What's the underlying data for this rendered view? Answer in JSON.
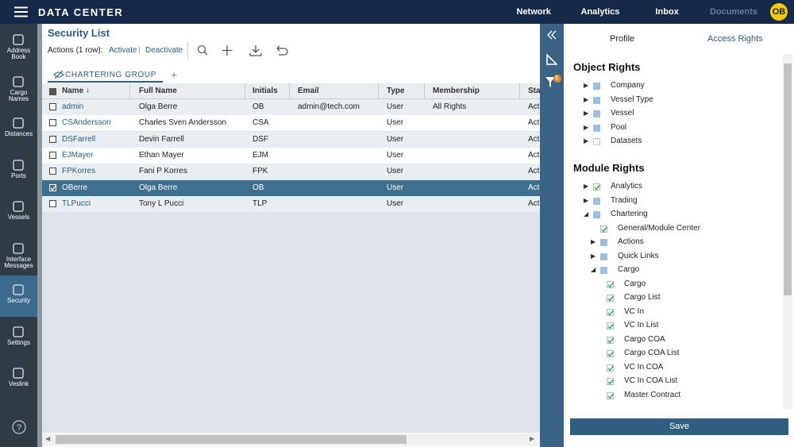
{
  "header": {
    "title": "DATA CENTER",
    "nav": [
      "Network",
      "Analytics",
      "Inbox",
      "Documents"
    ],
    "disabled_nav": "Documents",
    "avatar": "OB"
  },
  "sidebar": {
    "items": [
      "Address Book",
      "Cargo Names",
      "Distances",
      "Ports",
      "Vessels",
      "Interface Messages",
      "Security",
      "Settings",
      "Veslink"
    ],
    "active": "Security"
  },
  "main": {
    "title": "Security List",
    "actions_label": "Actions (1 row):",
    "actions": [
      "Activate",
      "Deactivate"
    ],
    "tab": "CHARTERING GROUP",
    "table": {
      "columns": [
        "Name",
        "Full Name",
        "Initials",
        "Email",
        "Type",
        "Membership",
        "Status"
      ],
      "rows": [
        [
          "admin",
          "Olga Berre",
          "OB",
          "admin@tech.com",
          "User",
          "All Rights",
          "Active"
        ],
        [
          "CSAndersson",
          "Charles Sven Andersson",
          "CSA",
          "",
          "User",
          "",
          "Active"
        ],
        [
          "DSFarrell",
          "Devin Farrell",
          "DSF",
          "",
          "User",
          "",
          "Active"
        ],
        [
          "EJMayer",
          "Ethan Mayer",
          "EJM",
          "",
          "User",
          "",
          "Active"
        ],
        [
          "FPKorres",
          "Fani P Korres",
          "FPK",
          "",
          "User",
          "",
          "Active"
        ],
        [
          "OBerre",
          "Olga Berre",
          "OB",
          "",
          "User",
          "",
          "Active"
        ],
        [
          "TLPucci",
          "Tony L Pucci",
          "TLP",
          "",
          "User",
          "",
          "Active"
        ]
      ],
      "selected_row": 5
    }
  },
  "rights": {
    "tabs": [
      "Profile",
      "Access Rights"
    ],
    "filter_badge": "1",
    "object_rights": {
      "title": "Object Rights",
      "items": [
        {
          "label": "Company",
          "level": 0,
          "expand": "closed",
          "state": "partial"
        },
        {
          "label": "Vessel Type",
          "level": 0,
          "expand": "closed",
          "state": "partial"
        },
        {
          "label": "Vessel",
          "level": 0,
          "expand": "closed",
          "state": "partial"
        },
        {
          "label": "Pool",
          "level": 0,
          "expand": "closed",
          "state": "partial"
        },
        {
          "label": "Datasets",
          "level": 0,
          "expand": "closed",
          "state": "empty"
        }
      ]
    },
    "module_rights": {
      "title": "Module Rights",
      "items": [
        {
          "label": "Analytics",
          "level": 0,
          "expand": "closed",
          "state": "checked"
        },
        {
          "label": "Trading",
          "level": 0,
          "expand": "closed",
          "state": "partial"
        },
        {
          "label": "Chartering",
          "level": 0,
          "expand": "open",
          "state": "partial"
        },
        {
          "label": "General/Module Center",
          "level": 1,
          "state": "checked"
        },
        {
          "label": "Actions",
          "level": 1,
          "expand": "closed",
          "state": "partial"
        },
        {
          "label": "Quick Links",
          "level": 1,
          "expand": "closed",
          "state": "partial"
        },
        {
          "label": "Cargo",
          "level": 1,
          "expand": "open",
          "state": "partial"
        },
        {
          "label": "Cargo",
          "level": 2,
          "state": "checked"
        },
        {
          "label": "Cargo List",
          "level": 2,
          "state": "checked"
        },
        {
          "label": "VC In",
          "level": 2,
          "state": "checked"
        },
        {
          "label": "VC In List",
          "level": 2,
          "state": "checked"
        },
        {
          "label": "Cargo COA",
          "level": 2,
          "state": "checked"
        },
        {
          "label": "Cargo COA List",
          "level": 2,
          "state": "checked"
        },
        {
          "label": "VC In COA",
          "level": 2,
          "state": "checked"
        },
        {
          "label": "VC In COA List",
          "level": 2,
          "state": "checked"
        },
        {
          "label": "Master Contract",
          "level": 2,
          "state": "checked"
        }
      ]
    },
    "save": "Save"
  }
}
